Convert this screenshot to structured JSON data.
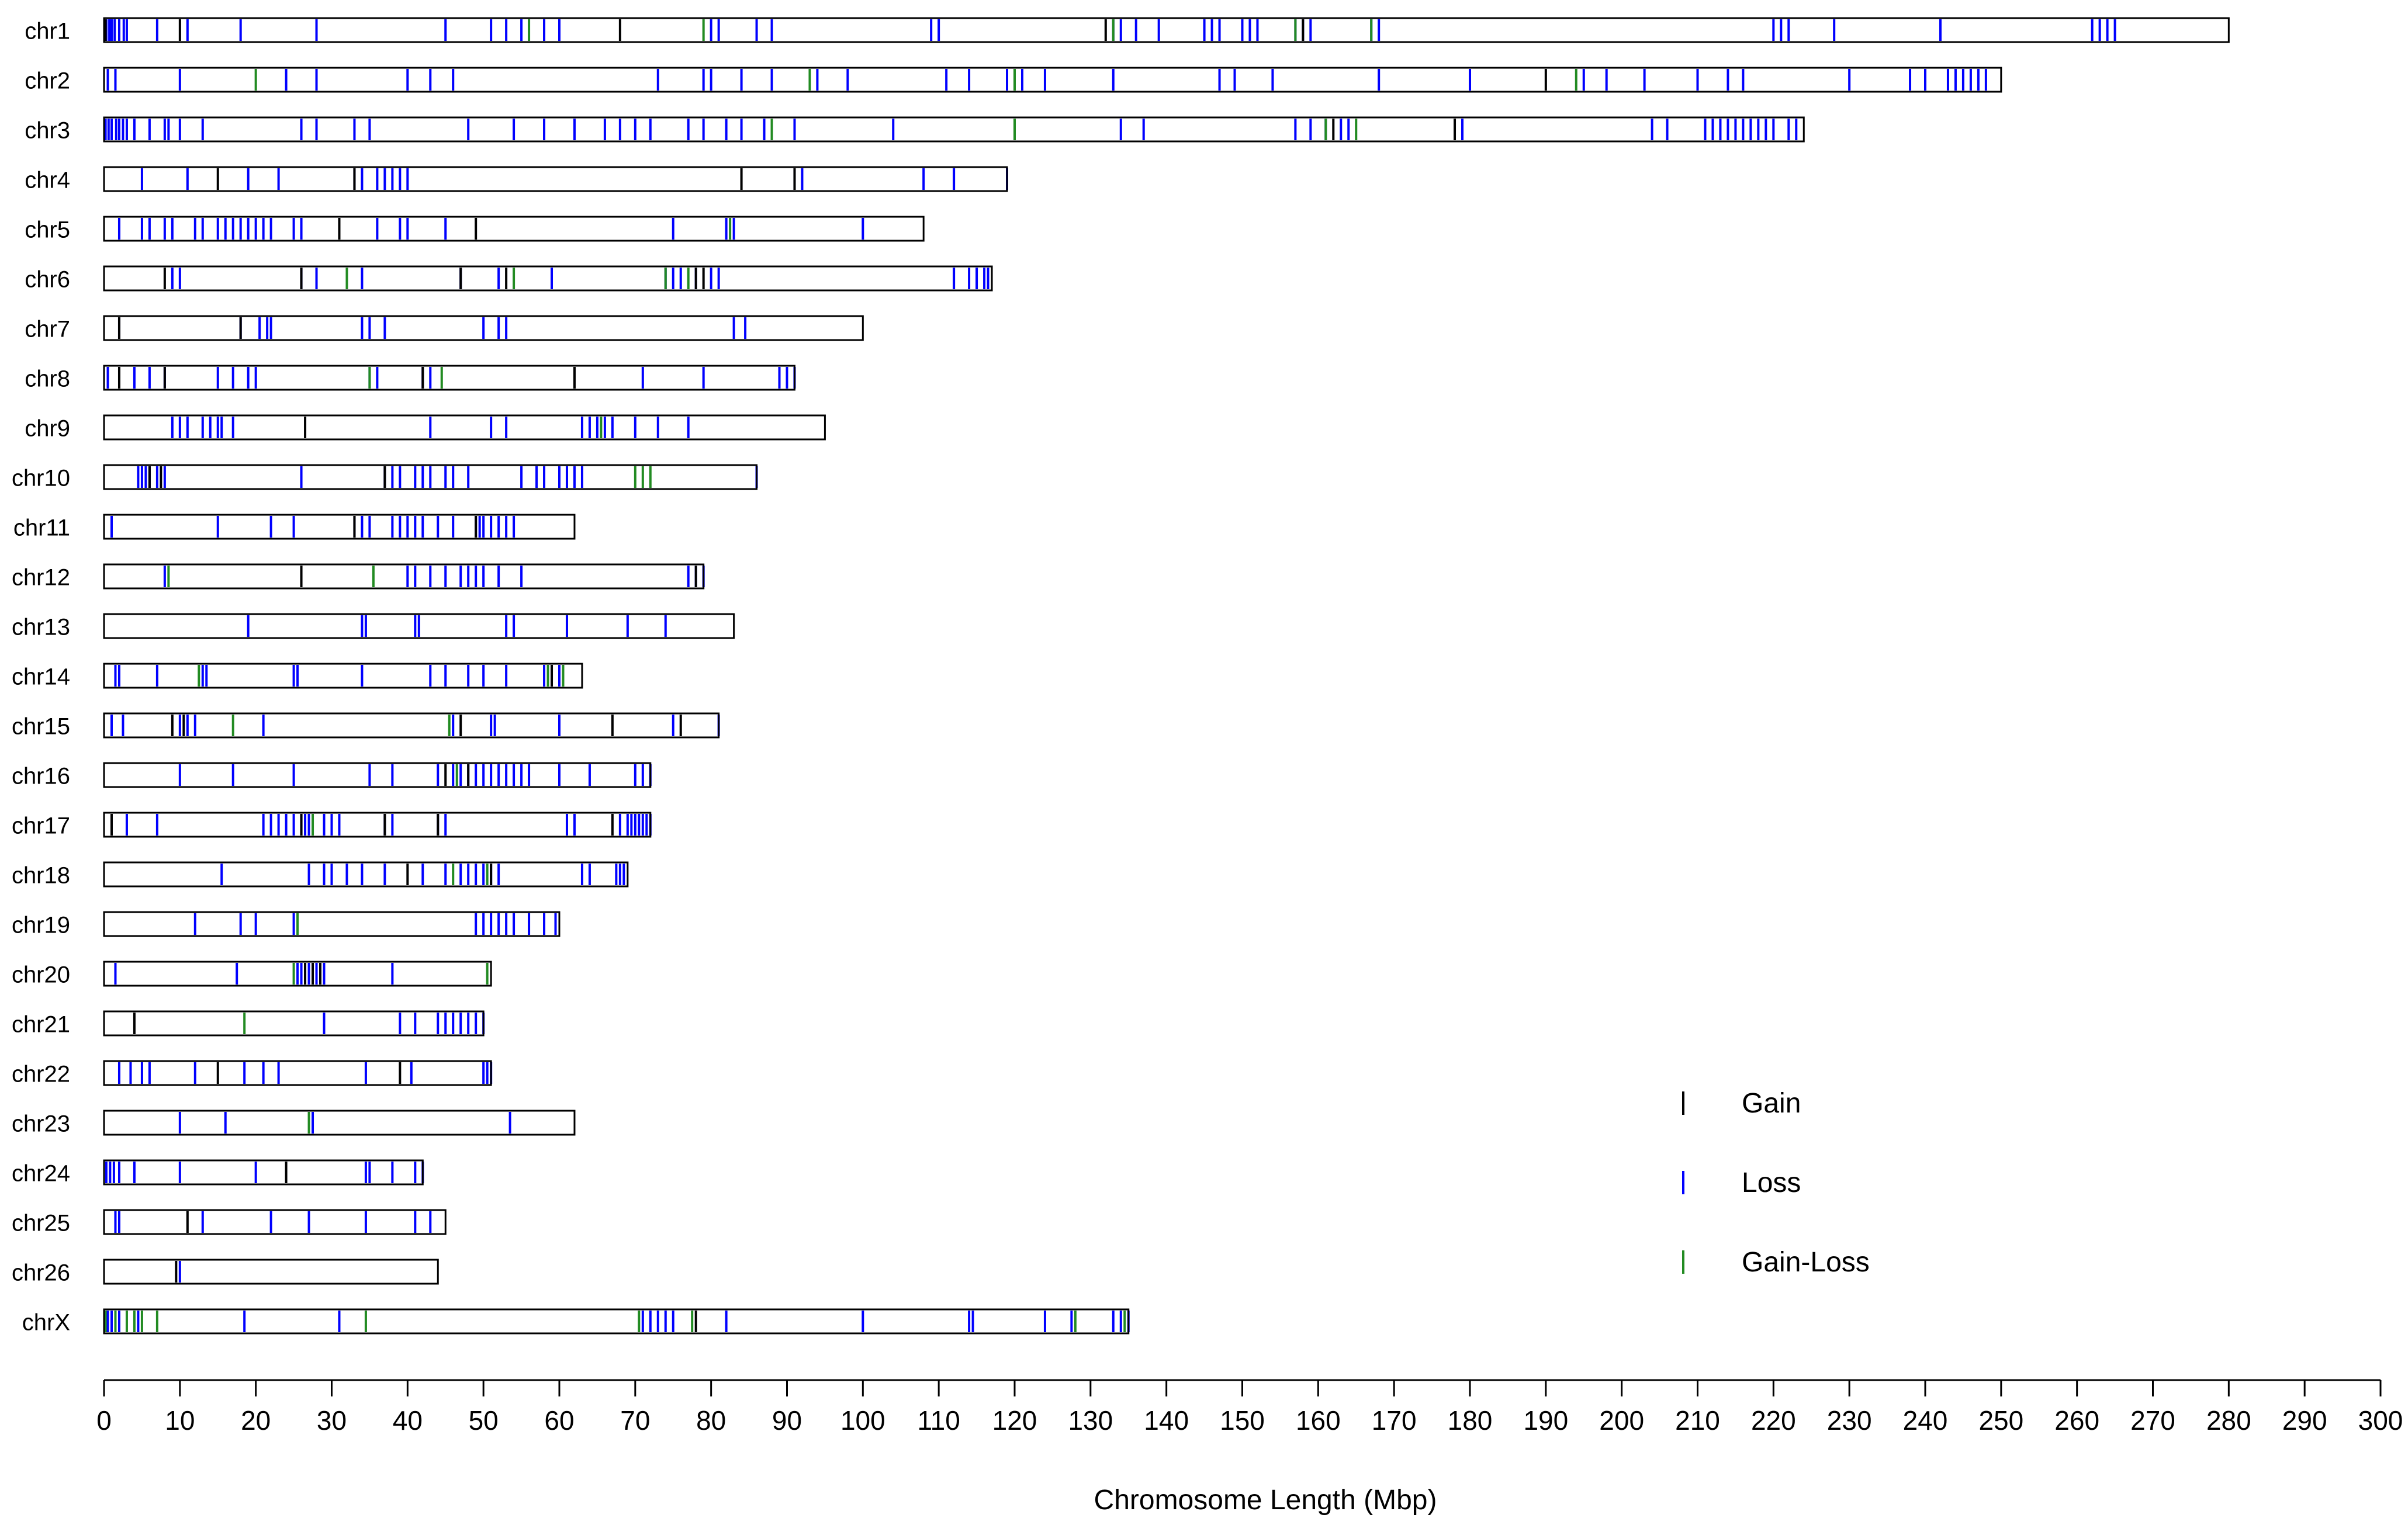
{
  "chart_data": {
    "type": "ideogram",
    "xlabel": "Chromosome Length (Mbp)",
    "xlim": [
      0,
      300
    ],
    "xticks": [
      0,
      10,
      20,
      30,
      40,
      50,
      60,
      70,
      80,
      90,
      100,
      110,
      120,
      130,
      140,
      150,
      160,
      170,
      180,
      190,
      200,
      210,
      220,
      230,
      240,
      250,
      260,
      270,
      280,
      290,
      300
    ],
    "colors": {
      "Gain": "#000000",
      "Loss": "#0000ff",
      "Gain-Loss": "#228b22"
    },
    "legend": [
      {
        "label": "Gain",
        "color": "#000000"
      },
      {
        "label": "Loss",
        "color": "#0000ff"
      },
      {
        "label": "Gain-Loss",
        "color": "#228b22"
      }
    ],
    "chromosomes": [
      {
        "name": "chr1",
        "length": 280,
        "loss": [
          0.3,
          0.7,
          1,
          1.4,
          2,
          2.6,
          3,
          7,
          11,
          18,
          28,
          45,
          51,
          53,
          55,
          58,
          60,
          80,
          81,
          86,
          88,
          109,
          110,
          133,
          134,
          136,
          139,
          145,
          146,
          147,
          150,
          151,
          152,
          157,
          158,
          159,
          167,
          168,
          220,
          221,
          222,
          228,
          242,
          262,
          263,
          264,
          265
        ],
        "gain": [
          0.2,
          10,
          68,
          132,
          158
        ],
        "gainloss": [
          56,
          79,
          133,
          157,
          167
        ]
      },
      {
        "name": "chr2",
        "length": 250,
        "loss": [
          0.5,
          1.5,
          10,
          24,
          28,
          40,
          43,
          46,
          73,
          79,
          80,
          84,
          88,
          94,
          98,
          111,
          114,
          119,
          121,
          124,
          133,
          147,
          149,
          154,
          168,
          180,
          195,
          198,
          203,
          210,
          214,
          216,
          230,
          238,
          240,
          243,
          244,
          245,
          246,
          247,
          248
        ],
        "gain": [
          190
        ],
        "gainloss": [
          20,
          93,
          120,
          194
        ]
      },
      {
        "name": "chr3",
        "length": 224,
        "loss": [
          0.2,
          0.6,
          1,
          1.6,
          2,
          2.5,
          3,
          4,
          6,
          8,
          8.5,
          10,
          13,
          26,
          28,
          33,
          35,
          48,
          54,
          58,
          62,
          66,
          68,
          70,
          72,
          77,
          79,
          82,
          84,
          87,
          91,
          104,
          120,
          134,
          137,
          157,
          159,
          161,
          163,
          164,
          179,
          204,
          206,
          211,
          212,
          213,
          214,
          215,
          216,
          217,
          218,
          219,
          220,
          222,
          223
        ],
        "gain": [
          162,
          178
        ],
        "gainloss": [
          88,
          120,
          161,
          165
        ]
      },
      {
        "name": "chr4",
        "length": 119,
        "loss": [
          5,
          11,
          19,
          23,
          33,
          34,
          36,
          37,
          38,
          39,
          40,
          91,
          92,
          108,
          112,
          119
        ],
        "gain": [
          15,
          33,
          84,
          91
        ],
        "gainloss": []
      },
      {
        "name": "chr5",
        "length": 108,
        "loss": [
          2,
          5,
          6,
          8,
          9,
          12,
          13,
          15,
          16,
          17,
          18,
          19,
          20,
          21,
          22,
          25,
          26,
          36,
          39,
          40,
          45,
          75,
          82,
          83,
          100
        ],
        "gain": [
          31,
          49
        ],
        "gainloss": [
          82.5
        ]
      },
      {
        "name": "chr6",
        "length": 117,
        "loss": [
          9,
          10,
          26,
          28,
          34,
          47,
          52,
          59,
          74,
          75,
          76,
          78,
          80,
          81,
          112,
          114,
          115,
          116,
          116.5
        ],
        "gain": [
          8,
          26,
          47,
          53,
          78,
          79
        ],
        "gainloss": [
          32,
          54,
          74,
          77
        ]
      },
      {
        "name": "chr7",
        "length": 100,
        "loss": [
          2,
          18,
          20.5,
          21.5,
          22,
          34,
          35,
          37,
          50,
          52,
          53,
          83,
          84.5
        ],
        "gain": [
          2,
          18
        ],
        "gainloss": []
      },
      {
        "name": "chr8",
        "length": 91,
        "loss": [
          0.5,
          4,
          6,
          8,
          15,
          17,
          19,
          20,
          35,
          36,
          42,
          43,
          71,
          79,
          89,
          90,
          91
        ],
        "gain": [
          2,
          8,
          42,
          62
        ],
        "gainloss": [
          35,
          44.5
        ]
      },
      {
        "name": "chr9",
        "length": 95,
        "loss": [
          9,
          10,
          11,
          13,
          14,
          15,
          15.5,
          17,
          43,
          51,
          53,
          63,
          64,
          65,
          66,
          67,
          70,
          73,
          77
        ],
        "gain": [
          26.5
        ],
        "gainloss": [
          65.5
        ]
      },
      {
        "name": "chr10",
        "length": 86,
        "loss": [
          4.5,
          5,
          5.5,
          6,
          7,
          8,
          26,
          37,
          38,
          39,
          41,
          42,
          43,
          45,
          46,
          48,
          55,
          57,
          58,
          60,
          61,
          62,
          63,
          86
        ],
        "gain": [
          6,
          7.5,
          37
        ],
        "gainloss": [
          70,
          71,
          72
        ]
      },
      {
        "name": "chr11",
        "length": 62,
        "loss": [
          1,
          15,
          22,
          25,
          33,
          34,
          35,
          38,
          39,
          40,
          41,
          42,
          44,
          46,
          49,
          49.5,
          50,
          51,
          52,
          53,
          54
        ],
        "gain": [
          33,
          49
        ],
        "gainloss": []
      },
      {
        "name": "chr12",
        "length": 79,
        "loss": [
          8,
          40,
          41,
          43,
          45,
          47,
          48,
          49,
          50,
          52,
          55,
          77,
          78,
          79
        ],
        "gain": [
          26,
          78
        ],
        "gainloss": [
          8.5,
          35.5
        ]
      },
      {
        "name": "chr13",
        "length": 83,
        "loss": [
          19,
          34,
          34.5,
          41,
          41.5,
          53,
          54,
          61,
          69,
          74
        ],
        "gain": [],
        "gainloss": []
      },
      {
        "name": "chr14",
        "length": 63,
        "loss": [
          1.5,
          2,
          7,
          13,
          13.5,
          25,
          25.5,
          34,
          43,
          45,
          48,
          50,
          53,
          58,
          59,
          60
        ],
        "gain": [
          59
        ],
        "gainloss": [
          12.5,
          58.5,
          60.5
        ]
      },
      {
        "name": "chr15",
        "length": 81,
        "loss": [
          1,
          2.5,
          10,
          11,
          12,
          21,
          46,
          51,
          51.5,
          60,
          75,
          81
        ],
        "gain": [
          9,
          10.5,
          47,
          67,
          76
        ],
        "gainloss": [
          17,
          45.5
        ]
      },
      {
        "name": "chr16",
        "length": 72,
        "loss": [
          10,
          17,
          25,
          35,
          38,
          44,
          46,
          47,
          48,
          49,
          50,
          51,
          52,
          53,
          54,
          55,
          56,
          60,
          64,
          70,
          71,
          72
        ],
        "gain": [
          45,
          48
        ],
        "gainloss": [
          46.5
        ]
      },
      {
        "name": "chr17",
        "length": 72,
        "loss": [
          3,
          7,
          21,
          22,
          23,
          24,
          25,
          26,
          26.5,
          27,
          29,
          30,
          31,
          37,
          38,
          44,
          45,
          61,
          62,
          68,
          69,
          69.5,
          70,
          70.5,
          71,
          71.5,
          72
        ],
        "gain": [
          1,
          26,
          37,
          44,
          67
        ],
        "gainloss": [
          27.5
        ]
      },
      {
        "name": "chr18",
        "length": 69,
        "loss": [
          15.5,
          27,
          29,
          30,
          32,
          34,
          37,
          42,
          45,
          47,
          48,
          49,
          50,
          51,
          52,
          63,
          64,
          67.5,
          68,
          68.5
        ],
        "gain": [
          40,
          51
        ],
        "gainloss": [
          46,
          50.5
        ]
      },
      {
        "name": "chr19",
        "length": 60,
        "loss": [
          12,
          18,
          20,
          25,
          49,
          50,
          51,
          52,
          53,
          54,
          56,
          58,
          59.5
        ],
        "gain": [],
        "gainloss": [
          25.5
        ]
      },
      {
        "name": "chr20",
        "length": 51,
        "loss": [
          1.5,
          17.5,
          25.5,
          26,
          27,
          28,
          29,
          38
        ],
        "gain": [
          26.5,
          27.5,
          28.5
        ],
        "gainloss": [
          25,
          50.5
        ]
      },
      {
        "name": "chr21",
        "length": 50,
        "loss": [
          29,
          39,
          41,
          44,
          45,
          46,
          47,
          48,
          49,
          50
        ],
        "gain": [
          4
        ],
        "gainloss": [
          18.5
        ]
      },
      {
        "name": "chr22",
        "length": 51,
        "loss": [
          2,
          3.5,
          5,
          6,
          12,
          18.5,
          21,
          23,
          34.5,
          40.5,
          50,
          50.5,
          51
        ],
        "gain": [
          15,
          39
        ],
        "gainloss": []
      },
      {
        "name": "chr23",
        "length": 62,
        "loss": [
          10,
          16,
          27.5,
          53.5
        ],
        "gain": [],
        "gainloss": [
          27
        ]
      },
      {
        "name": "chr24",
        "length": 42,
        "loss": [
          0.3,
          0.8,
          1.3,
          2,
          4,
          10,
          20,
          34.5,
          35,
          38,
          41,
          42
        ],
        "gain": [
          24
        ],
        "gainloss": []
      },
      {
        "name": "chr25",
        "length": 45,
        "loss": [
          1.5,
          2,
          13,
          22,
          27,
          34.5,
          41,
          43
        ],
        "gain": [
          11
        ],
        "gainloss": []
      },
      {
        "name": "chr26",
        "length": 44,
        "loss": [
          10
        ],
        "gain": [
          9.5
        ],
        "gainloss": []
      },
      {
        "name": "chrX",
        "length": 135,
        "loss": [
          0.5,
          1,
          2,
          4.5,
          18.5,
          31,
          71,
          72,
          73,
          74,
          75,
          82,
          100,
          114,
          114.5,
          124,
          127.5,
          133,
          134,
          135
        ],
        "gain": [
          78
        ],
        "gainloss": [
          0.2,
          1.5,
          3,
          4,
          5,
          7,
          34.5,
          70.5,
          77.5,
          128,
          134.5
        ]
      }
    ]
  }
}
